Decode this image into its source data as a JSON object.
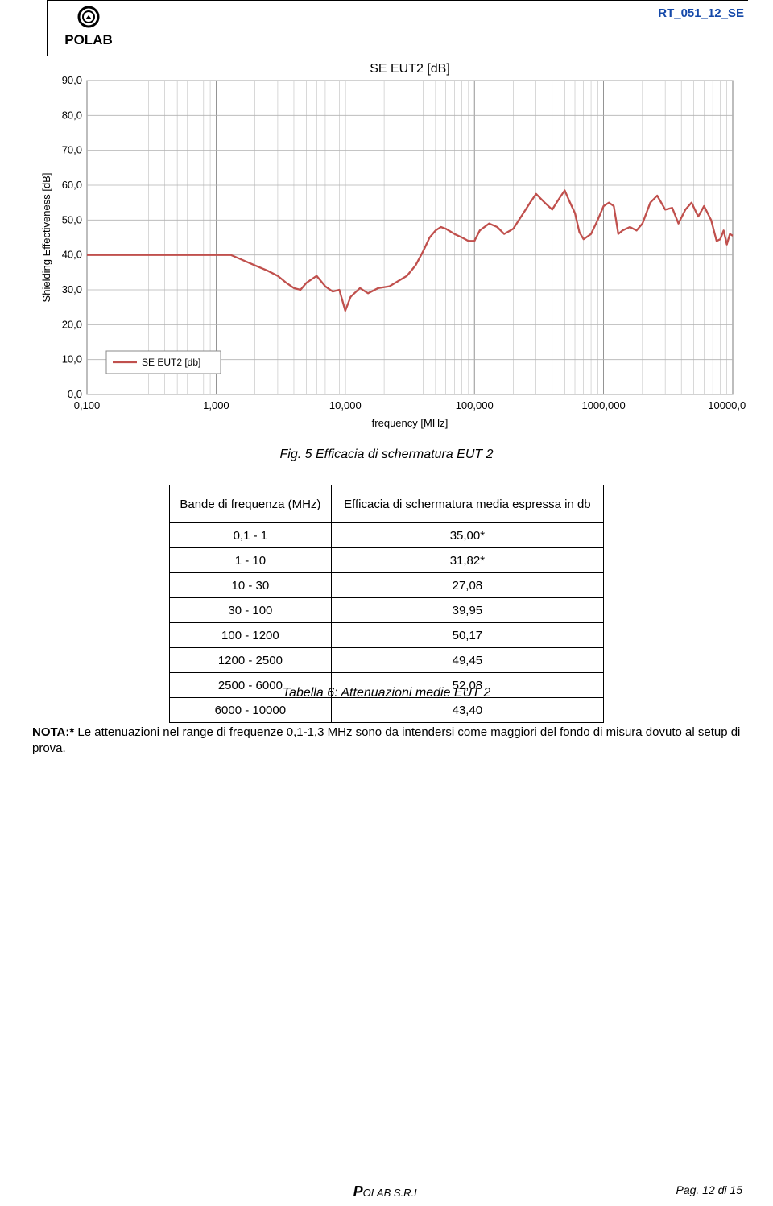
{
  "header": {
    "doc_id": "RT_051_12_SE",
    "logo_name_top": "",
    "logo_name_bottom": "POLAB",
    "logo_ring_color": "#000000",
    "logo_text_color": "#000000"
  },
  "chart": {
    "type": "line",
    "title": "SE EUT2 [dB]",
    "title_fontsize": 16,
    "title_color": "#000000",
    "xlabel": "frequency [MHz]",
    "ylabel": "Shielding Effectiveness [dB]",
    "label_fontsize": 13,
    "label_color": "#000000",
    "x_scale": "log",
    "xlim": [
      0.1,
      10000
    ],
    "x_ticks": [
      0.1,
      1,
      10,
      100,
      1000,
      10000
    ],
    "x_tick_labels": [
      "0,100",
      "1,000",
      "10,000",
      "100,000",
      "1000,000",
      "10000,000"
    ],
    "ylim": [
      0,
      90
    ],
    "y_ticks": [
      0,
      10,
      20,
      30,
      40,
      50,
      60,
      70,
      80,
      90
    ],
    "y_tick_labels": [
      "0,0",
      "10,0",
      "20,0",
      "30,0",
      "40,0",
      "50,0",
      "60,0",
      "70,0",
      "80,0",
      "90,0"
    ],
    "grid_color": "#b2b2b2",
    "major_grid_color": "#7a7a7a",
    "axis_color": "#808080",
    "background_color": "#ffffff",
    "legend": {
      "label": "SE EUT2 [db]",
      "color": "#c0504d",
      "border_color": "#888888",
      "fontsize": 12,
      "position": "inside-lower-left"
    },
    "series": {
      "name": "SE EUT2 [db]",
      "color": "#c0504d",
      "line_width": 2.3,
      "data": [
        [
          0.1,
          40.0
        ],
        [
          0.5,
          40.0
        ],
        [
          1.0,
          40.0
        ],
        [
          1.3,
          40.0
        ],
        [
          1.5,
          39.0
        ],
        [
          2.0,
          37.0
        ],
        [
          2.5,
          35.5
        ],
        [
          3.0,
          34.0
        ],
        [
          3.5,
          32.0
        ],
        [
          4.0,
          30.5
        ],
        [
          4.5,
          30.0
        ],
        [
          5.0,
          32.0
        ],
        [
          6.0,
          34.0
        ],
        [
          7.0,
          31.0
        ],
        [
          8.0,
          29.5
        ],
        [
          9.0,
          30.0
        ],
        [
          10.0,
          24.0
        ],
        [
          11.0,
          28.0
        ],
        [
          13.0,
          30.5
        ],
        [
          15.0,
          29.0
        ],
        [
          18.0,
          30.5
        ],
        [
          22.0,
          31.0
        ],
        [
          27.0,
          33.0
        ],
        [
          30.0,
          34.0
        ],
        [
          35.0,
          37.0
        ],
        [
          40.0,
          41.0
        ],
        [
          45.0,
          45.0
        ],
        [
          50.0,
          47.0
        ],
        [
          55.0,
          48.0
        ],
        [
          60.0,
          47.5
        ],
        [
          70.0,
          46.0
        ],
        [
          80.0,
          45.0
        ],
        [
          90.0,
          44.0
        ],
        [
          100.0,
          44.0
        ],
        [
          110.0,
          47.0
        ],
        [
          130.0,
          49.0
        ],
        [
          150.0,
          48.0
        ],
        [
          170.0,
          46.0
        ],
        [
          200.0,
          47.5
        ],
        [
          230.0,
          51.0
        ],
        [
          270.0,
          55.0
        ],
        [
          300.0,
          57.5
        ],
        [
          350.0,
          55.0
        ],
        [
          400.0,
          53.0
        ],
        [
          450.0,
          56.0
        ],
        [
          500.0,
          58.5
        ],
        [
          550.0,
          55.0
        ],
        [
          600.0,
          52.0
        ],
        [
          650.0,
          46.5
        ],
        [
          700.0,
          44.5
        ],
        [
          800.0,
          46.0
        ],
        [
          900.0,
          50.0
        ],
        [
          1000.0,
          54.0
        ],
        [
          1100.0,
          55.0
        ],
        [
          1200.0,
          54.0
        ],
        [
          1300.0,
          46.0
        ],
        [
          1400.0,
          47.0
        ],
        [
          1600.0,
          48.0
        ],
        [
          1800.0,
          47.0
        ],
        [
          2000.0,
          49.0
        ],
        [
          2300.0,
          55.0
        ],
        [
          2600.0,
          57.0
        ],
        [
          3000.0,
          53.0
        ],
        [
          3400.0,
          53.5
        ],
        [
          3800.0,
          49.0
        ],
        [
          4300.0,
          53.0
        ],
        [
          4800.0,
          55.0
        ],
        [
          5400.0,
          51.0
        ],
        [
          6000.0,
          54.0
        ],
        [
          6800.0,
          50.0
        ],
        [
          7500.0,
          44.0
        ],
        [
          8000.0,
          44.5
        ],
        [
          8500.0,
          47.0
        ],
        [
          9000.0,
          43.0
        ],
        [
          9500.0,
          46.0
        ],
        [
          10000.0,
          45.5
        ]
      ]
    }
  },
  "fig_caption": "Fig. 5 Efficacia di schermatura EUT 2",
  "table": {
    "columns": [
      "Bande di frequenza (MHz)",
      "Efficacia di schermatura media espressa in db"
    ],
    "rows": [
      [
        "0,1 - 1",
        "35,00*"
      ],
      [
        "1 - 10",
        "31,82*"
      ],
      [
        "10 - 30",
        "27,08"
      ],
      [
        "30 - 100",
        "39,95"
      ],
      [
        "100 - 1200",
        "50,17"
      ],
      [
        "1200 - 2500",
        "49,45"
      ],
      [
        "2500 - 6000",
        "52,08"
      ],
      [
        "6000 - 10000",
        "43,40"
      ]
    ],
    "caption": "Tabella 6: Attenuazioni medie EUT 2"
  },
  "note": {
    "label": "NOTA:*",
    "text": " Le attenuazioni nel range di frequenze 0,1-1,3 MHz sono da intendersi come maggiori del fondo di misura dovuto al setup di prova."
  },
  "footer": {
    "name_b": "P",
    "name_rest": "OLAB ",
    "name_suffix": "S.R.L",
    "page_label": "Pag. 12 di 15"
  }
}
